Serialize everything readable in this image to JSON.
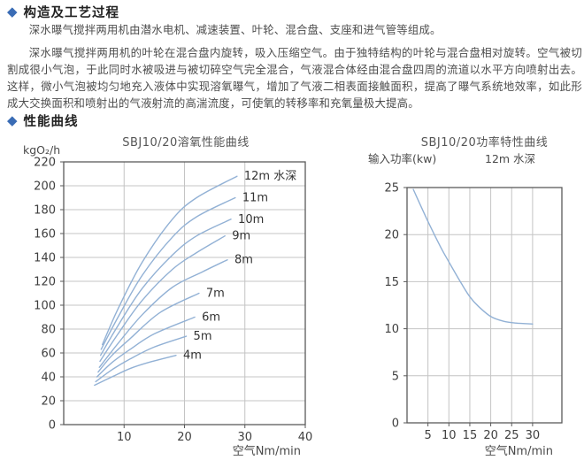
{
  "colors": {
    "accent": "#3a6cb5",
    "heading": "#222222",
    "body_text": "#4d4d4d",
    "curve": "#92b1d5",
    "grid": "#c4c4c4",
    "axis": "#5a5a5a",
    "tick_text": "#3f3f3f",
    "chart_title": "#555555"
  },
  "icons": {
    "section_bullet": "◆"
  },
  "sections": [
    {
      "title": "构造及工艺过程"
    },
    {
      "title": "性能曲线"
    }
  ],
  "paragraphs": [
    "深水曝气搅拌两用机由潜水电机、减速装置、叶轮、混合盘、支座和进气管等组成。",
    "深水曝气搅拌两用机的叶轮在混合盘内旋转，吸入压缩空气。由于独特结构的叶轮与混合盘相对旋转。空气被切割成很小气泡，于此同时水被吸进与被切碎空气完全混合，气液混合体经由混合盘四周的流道以水平方向喷射出去。这样，微小气泡被均匀地充入液体中实现溶氧曝气，增加了气液二相表面接触面积，提高了曝气系统地效率，如此形成大交换面积和喷射出的气液射流的高湍流度，可使氧的转移率和充氧量极大提高。"
  ],
  "chart_data": [
    {
      "type": "line",
      "title": "SBJ10/20溶氧性能曲线",
      "ylabel": "kgO₂/h",
      "xlabel": "空气Nm/min",
      "xlim": [
        0,
        40
      ],
      "ylim": [
        0,
        220
      ],
      "xticks": [
        10,
        20,
        30,
        40
      ],
      "yticks": [
        0,
        20,
        40,
        60,
        80,
        100,
        120,
        140,
        160,
        180,
        200,
        220
      ],
      "grid": true,
      "legend_position": "curve-end-labels",
      "series": [
        {
          "name": "4m",
          "points": [
            [
              5.1,
              33
            ],
            [
              8,
              40
            ],
            [
              11,
              47
            ],
            [
              14,
              52
            ],
            [
              18.6,
              58
            ]
          ]
        },
        {
          "name": "5m",
          "points": [
            [
              5.3,
              36
            ],
            [
              8,
              46
            ],
            [
              11,
              55
            ],
            [
              15,
              65
            ],
            [
              20.3,
              74
            ]
          ]
        },
        {
          "name": "6m",
          "points": [
            [
              5.5,
              40
            ],
            [
              8,
              52
            ],
            [
              11,
              63
            ],
            [
              15,
              76
            ],
            [
              21.7,
              90
            ]
          ]
        },
        {
          "name": "7m",
          "points": [
            [
              5.7,
              44
            ],
            [
              8,
              58
            ],
            [
              11,
              72
            ],
            [
              16,
              94
            ],
            [
              22.4,
              110
            ]
          ]
        },
        {
          "name": "8m",
          "points": [
            [
              5.9,
              48
            ],
            [
              9,
              68
            ],
            [
              13,
              92
            ],
            [
              18,
              115
            ],
            [
              23,
              128
            ],
            [
              27.1,
              138
            ]
          ]
        },
        {
          "name": "9m",
          "points": [
            [
              6.0,
              53
            ],
            [
              9,
              76
            ],
            [
              13,
              104
            ],
            [
              18,
              130
            ],
            [
              22,
              144
            ],
            [
              26.7,
              158
            ]
          ]
        },
        {
          "name": "10m",
          "points": [
            [
              6.1,
              58
            ],
            [
              9,
              83
            ],
            [
              13,
              114
            ],
            [
              18,
              142
            ],
            [
              22,
              158
            ],
            [
              27.7,
              172
            ]
          ]
        },
        {
          "name": "11m",
          "points": [
            [
              6.2,
              63
            ],
            [
              9,
              90
            ],
            [
              13,
              125
            ],
            [
              18,
              157
            ],
            [
              22,
              174
            ],
            [
              28.4,
              190
            ]
          ]
        },
        {
          "name": "12m 水深",
          "points": [
            [
              6.4,
              67
            ],
            [
              9,
              97
            ],
            [
              13,
              136
            ],
            [
              18,
              172
            ],
            [
              22,
              190
            ],
            [
              28.7,
              208
            ]
          ]
        }
      ]
    },
    {
      "type": "line",
      "title": "SBJ10/20功率特性曲线",
      "ylabel": "输入功率(kw)",
      "annotation": "12m 水深",
      "xlabel": "空气Nm/min",
      "xlim": [
        0,
        37
      ],
      "ylim": [
        0,
        25
      ],
      "xticks": [
        5,
        10,
        15,
        20,
        25,
        30
      ],
      "yticks": [
        0,
        5,
        10,
        15,
        20,
        25
      ],
      "grid": true,
      "series": [
        {
          "name": "",
          "points": [
            [
              1.5,
              24.8
            ],
            [
              5,
              21.4
            ],
            [
              8,
              18.7
            ],
            [
              10,
              17.1
            ],
            [
              13,
              14.8
            ],
            [
              15,
              13.4
            ],
            [
              17,
              12.4
            ],
            [
              20,
              11.3
            ],
            [
              23,
              10.8
            ],
            [
              26,
              10.6
            ],
            [
              30,
              10.5
            ]
          ]
        }
      ]
    }
  ]
}
